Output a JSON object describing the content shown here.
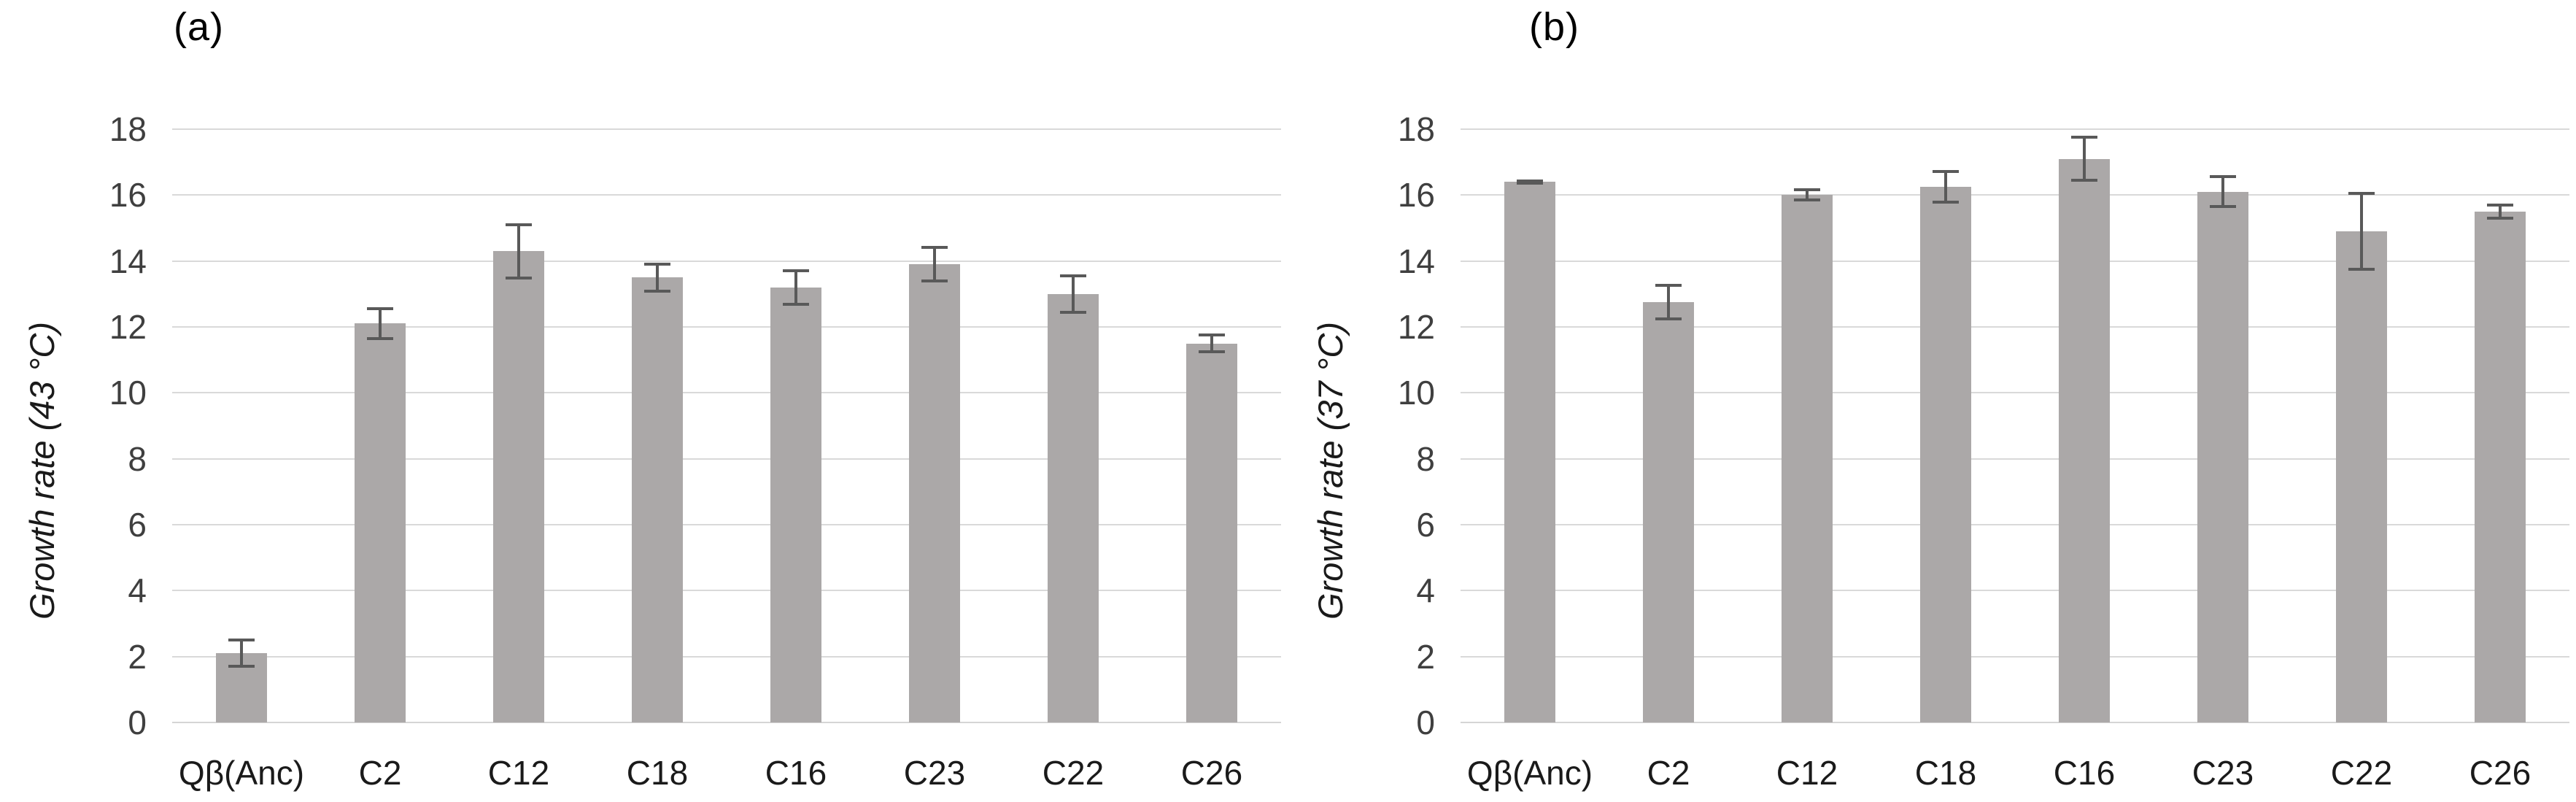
{
  "chart_data": [
    {
      "type": "bar",
      "title": "(a)",
      "ylabel": "Growth rate (43 °C)",
      "xlabel": "",
      "categories": [
        "Qβ(Anc)",
        "C2",
        "C12",
        "C18",
        "C16",
        "C23",
        "C22",
        "C26"
      ],
      "values": [
        2.1,
        12.1,
        14.3,
        13.5,
        13.2,
        13.9,
        13.0,
        11.5
      ],
      "errors": [
        0.45,
        0.5,
        0.85,
        0.45,
        0.55,
        0.55,
        0.6,
        0.3
      ],
      "ylim": [
        0,
        18
      ],
      "yticks": [
        0,
        2,
        4,
        6,
        8,
        10,
        12,
        14,
        16,
        18
      ],
      "grid": "horizontal",
      "legend": "none"
    },
    {
      "type": "bar",
      "title": "(b)",
      "ylabel": "Growth rate (37 °C)",
      "xlabel": "",
      "categories": [
        "Qβ(Anc)",
        "C2",
        "C12",
        "C18",
        "C16",
        "C23",
        "C22",
        "C26"
      ],
      "values": [
        16.4,
        12.75,
        16.0,
        16.25,
        17.1,
        16.1,
        14.9,
        15.5
      ],
      "errors": [
        0.08,
        0.55,
        0.2,
        0.5,
        0.7,
        0.5,
        1.2,
        0.25
      ],
      "ylim": [
        0,
        18
      ],
      "yticks": [
        0,
        2,
        4,
        6,
        8,
        10,
        12,
        14,
        16,
        18
      ],
      "grid": "horizontal",
      "legend": "none"
    }
  ],
  "colors": {
    "bar": "#aba8a8",
    "gridline": "#d9d9d9",
    "axis_line": "#d5d5d5",
    "error_bar": "#595959",
    "tick_text": "#3f3f3f",
    "category_text": "#1a1a1a",
    "title_text": "#000000",
    "background": "#ffffff"
  }
}
